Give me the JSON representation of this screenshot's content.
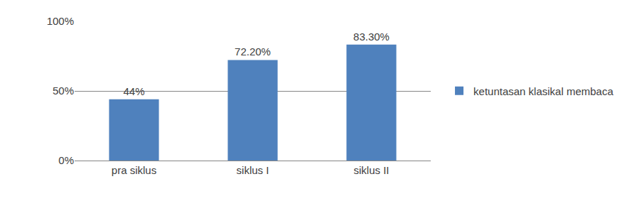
{
  "chart_data": {
    "type": "bar",
    "categories": [
      "pra siklus",
      "siklus I",
      "siklus II"
    ],
    "series": [
      {
        "name": "ketuntasan klasikal membaca",
        "color": "#4f81bd",
        "values": [
          44,
          72.2,
          83.3
        ],
        "value_labels": [
          "44%",
          "72.20%",
          "83.30%"
        ]
      }
    ],
    "ylim": [
      0,
      100
    ],
    "yticks": [
      {
        "value": 0,
        "label": "0%"
      },
      {
        "value": 50,
        "label": "50%"
      },
      {
        "value": 100,
        "label": "100%"
      }
    ],
    "grid": true,
    "legend": "right",
    "data_labels": true
  }
}
